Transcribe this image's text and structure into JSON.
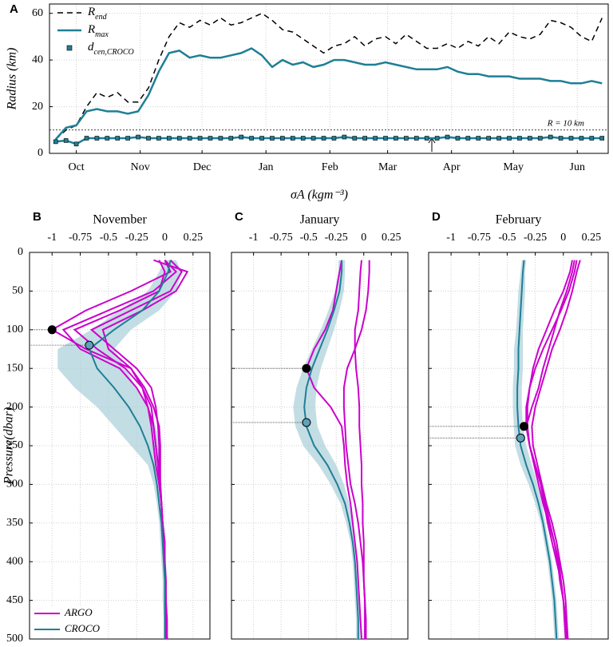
{
  "shared_xlabel": "σA (kgm⁻³)",
  "chart_data": [
    {
      "type": "line",
      "panel": "A",
      "ylabel": "Radius (km)",
      "xlim": [
        -13,
        258
      ],
      "ylim": [
        0,
        64
      ],
      "xticks": [
        {
          "value": 0,
          "label": "Oct"
        },
        {
          "value": 31,
          "label": "Nov"
        },
        {
          "value": 61,
          "label": "Dec"
        },
        {
          "value": 92,
          "label": "Jan"
        },
        {
          "value": 123,
          "label": "Feb"
        },
        {
          "value": 151,
          "label": "Mar"
        },
        {
          "value": 182,
          "label": "Apr"
        },
        {
          "value": 212,
          "label": "May"
        },
        {
          "value": 243,
          "label": "Jun"
        }
      ],
      "yticks": [
        0,
        20,
        40,
        60
      ],
      "grid": true,
      "hline": 10,
      "hline_label": "R = 10 km",
      "x": [
        -10,
        -5,
        0,
        5,
        10,
        15,
        20,
        25,
        30,
        35,
        40,
        45,
        50,
        55,
        60,
        65,
        70,
        75,
        80,
        85,
        90,
        95,
        100,
        105,
        110,
        115,
        120,
        125,
        130,
        135,
        140,
        145,
        150,
        155,
        160,
        165,
        170,
        175,
        180,
        185,
        190,
        195,
        200,
        205,
        210,
        215,
        220,
        225,
        230,
        235,
        240,
        245,
        250,
        255
      ],
      "series": [
        {
          "name": "Rend",
          "color": "#000000",
          "dash": true,
          "values": [
            6,
            10,
            12,
            20,
            26,
            24,
            26,
            22,
            22,
            28,
            40,
            50,
            56,
            54,
            57,
            55,
            58,
            55,
            56,
            58,
            60,
            57,
            53,
            52,
            49,
            46,
            43,
            46,
            47,
            50,
            46,
            49,
            50,
            47,
            51,
            48,
            45,
            45,
            47,
            45,
            48,
            46,
            50,
            47,
            52,
            50,
            49,
            51,
            57,
            56,
            54,
            50,
            48,
            58
          ]
        },
        {
          "name": "Rmax",
          "color": "#1f7f96",
          "values": [
            6,
            11,
            12,
            18,
            19,
            18,
            18,
            17,
            18,
            25,
            35,
            43,
            44,
            41,
            42,
            41,
            41,
            42,
            43,
            45,
            42,
            37,
            40,
            38,
            39,
            37,
            38,
            40,
            40,
            39,
            38,
            38,
            39,
            38,
            37,
            36,
            36,
            36,
            37,
            35,
            34,
            34,
            33,
            33,
            33,
            32,
            32,
            32,
            31,
            31,
            30,
            30,
            31,
            30
          ]
        },
        {
          "name": "dcen,CROCO",
          "color": "#1f7f96",
          "marker": "square",
          "values": [
            5,
            5.5,
            4,
            6.5,
            6.5,
            6.5,
            6.5,
            6.5,
            7,
            6.5,
            6.5,
            6.5,
            6.5,
            6.5,
            6.5,
            6.5,
            6.5,
            6.5,
            7,
            6.5,
            6.5,
            6.5,
            6.5,
            6.5,
            6.5,
            6.5,
            6.5,
            6.5,
            7,
            6.5,
            6.5,
            6.5,
            6.5,
            6.5,
            6.5,
            6.5,
            6.5,
            6.5,
            7,
            6.5,
            6.5,
            6.5,
            6.5,
            6.5,
            6.5,
            6.5,
            6.5,
            6.5,
            7,
            6.5,
            6.5,
            6.5,
            6.5,
            6.5
          ]
        }
      ]
    },
    {
      "type": "profile",
      "panel": "B",
      "title": "November",
      "ylabel": "Pressure(dbar)",
      "legend": "lower left",
      "xlim": [
        -1.2,
        0.4
      ],
      "ylim": [
        0,
        500
      ],
      "y_inverted": true,
      "show_ytick_labels": true,
      "xticks": [
        -1,
        -0.75,
        -0.5,
        -0.25,
        0,
        0.25
      ],
      "yticks": [
        0,
        50,
        100,
        150,
        200,
        250,
        300,
        350,
        400,
        450,
        500
      ],
      "grid": true,
      "y": [
        10,
        25,
        50,
        75,
        100,
        125,
        150,
        175,
        200,
        225,
        250,
        275,
        300,
        325,
        350,
        375,
        400,
        425,
        450,
        475,
        500
      ],
      "series": [
        {
          "name": "ARGO",
          "color": "#cc00cc",
          "values": [
            0.0,
            0.05,
            -0.3,
            -0.7,
            -1.0,
            -0.7,
            -0.3,
            -0.2,
            -0.15,
            -0.12,
            -0.1,
            -0.08,
            -0.05,
            -0.03,
            -0.02,
            0,
            0,
            0,
            0.01,
            0.01,
            0.01
          ]
        },
        {
          "name": "ARGO",
          "color": "#cc00cc",
          "values": [
            0.0,
            0.1,
            -0.1,
            -0.5,
            -0.9,
            -0.75,
            -0.4,
            -0.25,
            -0.15,
            -0.1,
            -0.08,
            -0.06,
            -0.05,
            -0.03,
            -0.02,
            -0.01,
            0,
            0,
            0.01,
            0.01,
            0.02
          ]
        },
        {
          "name": "ARGO",
          "color": "#cc00cc",
          "values": [
            -0.05,
            0.0,
            -0.05,
            -0.4,
            -0.8,
            -0.6,
            -0.35,
            -0.2,
            -0.12,
            -0.1,
            -0.08,
            -0.06,
            -0.04,
            -0.03,
            -0.02,
            0,
            0,
            0.01,
            0.01,
            0.02,
            0.02
          ]
        },
        {
          "name": "ARGO",
          "color": "#cc00cc",
          "values": [
            0.05,
            0.15,
            0.05,
            -0.3,
            -0.65,
            -0.45,
            -0.25,
            -0.12,
            -0.08,
            -0.06,
            -0.05,
            -0.05,
            -0.04,
            -0.03,
            -0.02,
            -0.01,
            0,
            0,
            0.01,
            0.01,
            0.02
          ]
        },
        {
          "name": "ARGO",
          "color": "#cc00cc",
          "values": [
            -0.1,
            0.2,
            0.1,
            -0.2,
            -0.55,
            -0.5,
            -0.3,
            -0.18,
            -0.1,
            -0.05,
            -0.04,
            -0.04,
            -0.04,
            -0.03,
            -0.02,
            -0.01,
            0,
            0,
            0,
            0.01,
            0.01
          ]
        },
        {
          "name": "CROCO",
          "color": "#1f7f96",
          "band_color": "#a9cfd9",
          "values": [
            0.05,
            0.03,
            -0.05,
            -0.2,
            -0.45,
            -0.67,
            -0.6,
            -0.45,
            -0.32,
            -0.22,
            -0.15,
            -0.1,
            -0.07,
            -0.05,
            -0.03,
            -0.02,
            -0.01,
            0,
            0,
            0,
            0
          ],
          "low": [
            0,
            -0.05,
            -0.15,
            -0.4,
            -0.65,
            -0.95,
            -0.95,
            -0.8,
            -0.6,
            -0.45,
            -0.3,
            -0.15,
            -0.1,
            -0.07,
            -0.05,
            -0.04,
            -0.03,
            -0.02,
            -0.02,
            -0.01,
            -0.01
          ],
          "high": [
            0.1,
            0.15,
            0.1,
            -0.05,
            -0.3,
            -0.45,
            -0.35,
            -0.25,
            -0.15,
            -0.08,
            -0.05,
            -0.04,
            -0.03,
            -0.02,
            -0.01,
            0,
            0.01,
            0.02,
            0.02,
            0.02,
            0.02
          ]
        }
      ],
      "points": [
        {
          "x": -1.0,
          "y": 100,
          "color": "#000000"
        },
        {
          "x": -0.67,
          "y": 120,
          "color": "#5fa3b8"
        }
      ]
    },
    {
      "type": "profile",
      "panel": "C",
      "title": "January",
      "xlim": [
        -1.2,
        0.4
      ],
      "ylim": [
        0,
        500
      ],
      "y_inverted": true,
      "show_ytick_labels": false,
      "xticks": [
        -1,
        -0.75,
        -0.5,
        -0.25,
        0,
        0.25
      ],
      "yticks": [
        0,
        50,
        100,
        150,
        200,
        250,
        300,
        350,
        400,
        450,
        500
      ],
      "grid": true,
      "y": [
        10,
        25,
        50,
        75,
        100,
        125,
        150,
        175,
        200,
        225,
        250,
        275,
        300,
        325,
        350,
        375,
        400,
        425,
        450,
        475,
        500
      ],
      "series": [
        {
          "name": "ARGO",
          "color": "#cc00cc",
          "values": [
            -0.2,
            -0.22,
            -0.25,
            -0.28,
            -0.35,
            -0.45,
            -0.52,
            -0.45,
            -0.3,
            -0.2,
            -0.18,
            -0.17,
            -0.15,
            -0.12,
            -0.1,
            -0.08,
            -0.06,
            -0.05,
            -0.04,
            -0.03,
            -0.02
          ]
        },
        {
          "name": "ARGO",
          "color": "#cc00cc",
          "values": [
            0.05,
            0.05,
            0.04,
            0.02,
            -0.02,
            -0.08,
            -0.15,
            -0.18,
            -0.18,
            -0.17,
            -0.16,
            -0.14,
            -0.12,
            -0.08,
            -0.05,
            -0.03,
            -0.01,
            0,
            0.01,
            0.02,
            0.02
          ]
        },
        {
          "name": "ARGO",
          "color": "#cc00cc",
          "values": [
            -0.02,
            -0.03,
            -0.04,
            -0.05,
            -0.08,
            -0.08,
            -0.07,
            -0.05,
            -0.04,
            -0.04,
            -0.03,
            -0.02,
            -0.02,
            -0.01,
            -0.01,
            0,
            0,
            0,
            0.01,
            0.01,
            0.01
          ]
        },
        {
          "name": "CROCO",
          "color": "#1f7f96",
          "band_color": "#a9cfd9",
          "values": [
            -0.2,
            -0.2,
            -0.22,
            -0.27,
            -0.33,
            -0.4,
            -0.47,
            -0.52,
            -0.54,
            -0.52,
            -0.45,
            -0.33,
            -0.24,
            -0.17,
            -0.13,
            -0.1,
            -0.08,
            -0.07,
            -0.06,
            -0.05,
            -0.05
          ],
          "low": [
            -0.23,
            -0.23,
            -0.26,
            -0.32,
            -0.39,
            -0.47,
            -0.55,
            -0.61,
            -0.64,
            -0.62,
            -0.55,
            -0.41,
            -0.3,
            -0.21,
            -0.16,
            -0.12,
            -0.1,
            -0.09,
            -0.08,
            -0.07,
            -0.07
          ],
          "high": [
            -0.17,
            -0.17,
            -0.18,
            -0.22,
            -0.27,
            -0.33,
            -0.39,
            -0.43,
            -0.44,
            -0.42,
            -0.35,
            -0.25,
            -0.18,
            -0.13,
            -0.1,
            -0.08,
            -0.06,
            -0.05,
            -0.04,
            -0.03,
            -0.03
          ]
        }
      ],
      "points": [
        {
          "x": -0.52,
          "y": 150,
          "color": "#000000"
        },
        {
          "x": -0.52,
          "y": 220,
          "color": "#5fa3b8"
        }
      ]
    },
    {
      "type": "profile",
      "panel": "D",
      "title": "February",
      "xlim": [
        -1.2,
        0.4
      ],
      "ylim": [
        0,
        500
      ],
      "y_inverted": true,
      "show_ytick_labels": false,
      "xticks": [
        -1,
        -0.75,
        -0.5,
        -0.25,
        0,
        0.25
      ],
      "yticks": [
        0,
        50,
        100,
        150,
        200,
        250,
        300,
        350,
        400,
        450,
        500
      ],
      "grid": true,
      "y": [
        10,
        25,
        50,
        75,
        100,
        125,
        150,
        175,
        200,
        225,
        250,
        275,
        300,
        325,
        350,
        375,
        400,
        425,
        450,
        475,
        500
      ],
      "series": [
        {
          "name": "ARGO",
          "color": "#cc00cc",
          "values": [
            0.12,
            0.1,
            0.05,
            -0.02,
            -0.1,
            -0.18,
            -0.25,
            -0.3,
            -0.33,
            -0.33,
            -0.3,
            -0.25,
            -0.2,
            -0.17,
            -0.14,
            -0.1,
            -0.06,
            -0.02,
            0,
            0.02,
            0.03
          ]
        },
        {
          "name": "ARGO",
          "color": "#cc00cc",
          "values": [
            0.08,
            0.06,
            0.0,
            -0.08,
            -0.15,
            -0.22,
            -0.27,
            -0.3,
            -0.32,
            -0.32,
            -0.3,
            -0.26,
            -0.22,
            -0.18,
            -0.13,
            -0.08,
            -0.04,
            -0.02,
            0,
            0.01,
            0.02
          ]
        },
        {
          "name": "ARGO",
          "color": "#cc00cc",
          "values": [
            0.1,
            0.08,
            0.03,
            -0.03,
            -0.08,
            -0.13,
            -0.18,
            -0.22,
            -0.28,
            -0.33,
            -0.3,
            -0.25,
            -0.2,
            -0.16,
            -0.12,
            -0.08,
            -0.05,
            -0.03,
            0,
            0.02,
            0.04
          ]
        },
        {
          "name": "ARGO",
          "color": "#cc00cc",
          "values": [
            0.15,
            0.12,
            0.08,
            0.03,
            -0.03,
            -0.1,
            -0.15,
            -0.2,
            -0.25,
            -0.28,
            -0.27,
            -0.23,
            -0.19,
            -0.15,
            -0.1,
            -0.06,
            -0.03,
            0,
            0.02,
            0.03,
            0.04
          ]
        },
        {
          "name": "CROCO",
          "color": "#1f7f96",
          "band_color": "#a9cfd9",
          "values": [
            -0.35,
            -0.36,
            -0.37,
            -0.38,
            -0.39,
            -0.4,
            -0.4,
            -0.41,
            -0.41,
            -0.4,
            -0.38,
            -0.33,
            -0.27,
            -0.22,
            -0.18,
            -0.15,
            -0.12,
            -0.1,
            -0.08,
            -0.07,
            -0.06
          ],
          "low": [
            -0.37,
            -0.38,
            -0.4,
            -0.41,
            -0.42,
            -0.44,
            -0.44,
            -0.45,
            -0.45,
            -0.44,
            -0.43,
            -0.38,
            -0.31,
            -0.25,
            -0.2,
            -0.17,
            -0.14,
            -0.12,
            -0.1,
            -0.09,
            -0.08
          ],
          "high": [
            -0.33,
            -0.34,
            -0.34,
            -0.35,
            -0.36,
            -0.36,
            -0.36,
            -0.37,
            -0.37,
            -0.36,
            -0.33,
            -0.28,
            -0.23,
            -0.19,
            -0.16,
            -0.13,
            -0.1,
            -0.08,
            -0.06,
            -0.05,
            -0.04
          ]
        }
      ],
      "points": [
        {
          "x": -0.35,
          "y": 225,
          "color": "#000000"
        },
        {
          "x": -0.38,
          "y": 240,
          "color": "#5fa3b8"
        }
      ]
    }
  ]
}
